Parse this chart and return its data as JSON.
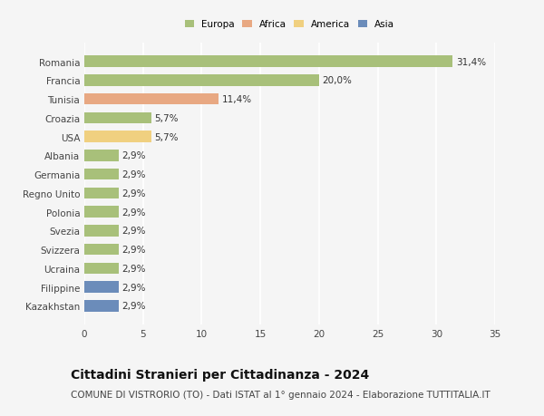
{
  "categories": [
    "Kazakhstan",
    "Filippine",
    "Ucraina",
    "Svizzera",
    "Svezia",
    "Polonia",
    "Regno Unito",
    "Germania",
    "Albania",
    "USA",
    "Croazia",
    "Tunisia",
    "Francia",
    "Romania"
  ],
  "values": [
    2.9,
    2.9,
    2.9,
    2.9,
    2.9,
    2.9,
    2.9,
    2.9,
    2.9,
    5.7,
    5.7,
    11.4,
    20.0,
    31.4
  ],
  "labels": [
    "2,9%",
    "2,9%",
    "2,9%",
    "2,9%",
    "2,9%",
    "2,9%",
    "2,9%",
    "2,9%",
    "2,9%",
    "5,7%",
    "5,7%",
    "11,4%",
    "20,0%",
    "31,4%"
  ],
  "colors": [
    "#6b8cba",
    "#6b8cba",
    "#a8c07a",
    "#a8c07a",
    "#a8c07a",
    "#a8c07a",
    "#a8c07a",
    "#a8c07a",
    "#a8c07a",
    "#f0d080",
    "#a8c07a",
    "#e8a882",
    "#a8c07a",
    "#a8c07a"
  ],
  "legend_labels": [
    "Europa",
    "Africa",
    "America",
    "Asia"
  ],
  "legend_colors": [
    "#a8c07a",
    "#e8a882",
    "#f0d080",
    "#6b8cba"
  ],
  "title": "Cittadini Stranieri per Cittadinanza - 2024",
  "subtitle": "COMUNE DI VISTRORIO (TO) - Dati ISTAT al 1° gennaio 2024 - Elaborazione TUTTITALIA.IT",
  "xlim": [
    0,
    35
  ],
  "xticks": [
    0,
    5,
    10,
    15,
    20,
    25,
    30,
    35
  ],
  "background_color": "#f5f5f5",
  "bar_height": 0.6,
  "grid_color": "#ffffff",
  "label_fontsize": 7.5,
  "tick_fontsize": 7.5,
  "title_fontsize": 10,
  "subtitle_fontsize": 7.5
}
